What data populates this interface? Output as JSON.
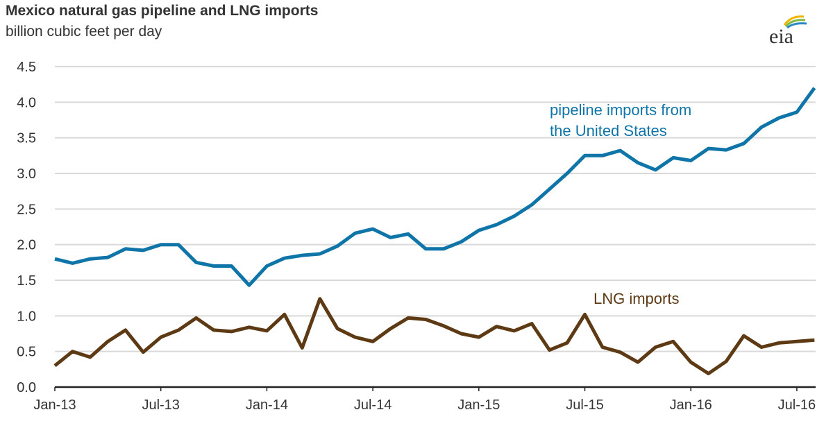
{
  "chart_data": {
    "type": "line",
    "title": "Mexico natural gas pipeline and LNG imports",
    "subtitle": "billion cubic feet per day",
    "logo": "eia",
    "ylim": [
      0,
      4.5
    ],
    "yticks": [
      "0.0",
      "0.5",
      "1.0",
      "1.5",
      "2.0",
      "2.5",
      "3.0",
      "3.5",
      "4.0",
      "4.5"
    ],
    "xticks": [
      "Jan-13",
      "Jul-13",
      "Jan-14",
      "Jul-14",
      "Jan-15",
      "Jul-15",
      "Jan-16",
      "Jul-16"
    ],
    "x_start": "Jan-13",
    "x_end": "Aug-16",
    "grid": true,
    "series": [
      {
        "name": "pipeline imports from the United States",
        "label_lines": [
          "pipeline imports from",
          "the United States"
        ],
        "color": "#0f75a8",
        "values": [
          1.8,
          1.74,
          1.8,
          1.82,
          1.94,
          1.92,
          2.0,
          2.0,
          1.75,
          1.7,
          1.7,
          1.43,
          1.7,
          1.81,
          1.85,
          1.87,
          1.98,
          2.16,
          2.22,
          2.1,
          2.15,
          1.94,
          1.94,
          2.04,
          2.2,
          2.28,
          2.4,
          2.56,
          2.78,
          3.0,
          3.25,
          3.25,
          3.32,
          3.15,
          3.05,
          3.22,
          3.18,
          3.35,
          3.33,
          3.42,
          3.65,
          3.78,
          3.86,
          4.2
        ]
      },
      {
        "name": "LNG imports",
        "label_lines": [
          "LNG imports"
        ],
        "color": "#5d3a14",
        "values": [
          0.3,
          0.5,
          0.42,
          0.64,
          0.8,
          0.49,
          0.7,
          0.8,
          0.97,
          0.8,
          0.78,
          0.84,
          0.79,
          1.02,
          0.55,
          1.24,
          0.82,
          0.7,
          0.64,
          0.82,
          0.97,
          0.95,
          0.86,
          0.75,
          0.7,
          0.85,
          0.79,
          0.89,
          0.52,
          0.62,
          1.02,
          0.56,
          0.49,
          0.35,
          0.56,
          0.64,
          0.35,
          0.19,
          0.36,
          0.72,
          0.56,
          0.62,
          0.64,
          0.66
        ]
      }
    ]
  }
}
